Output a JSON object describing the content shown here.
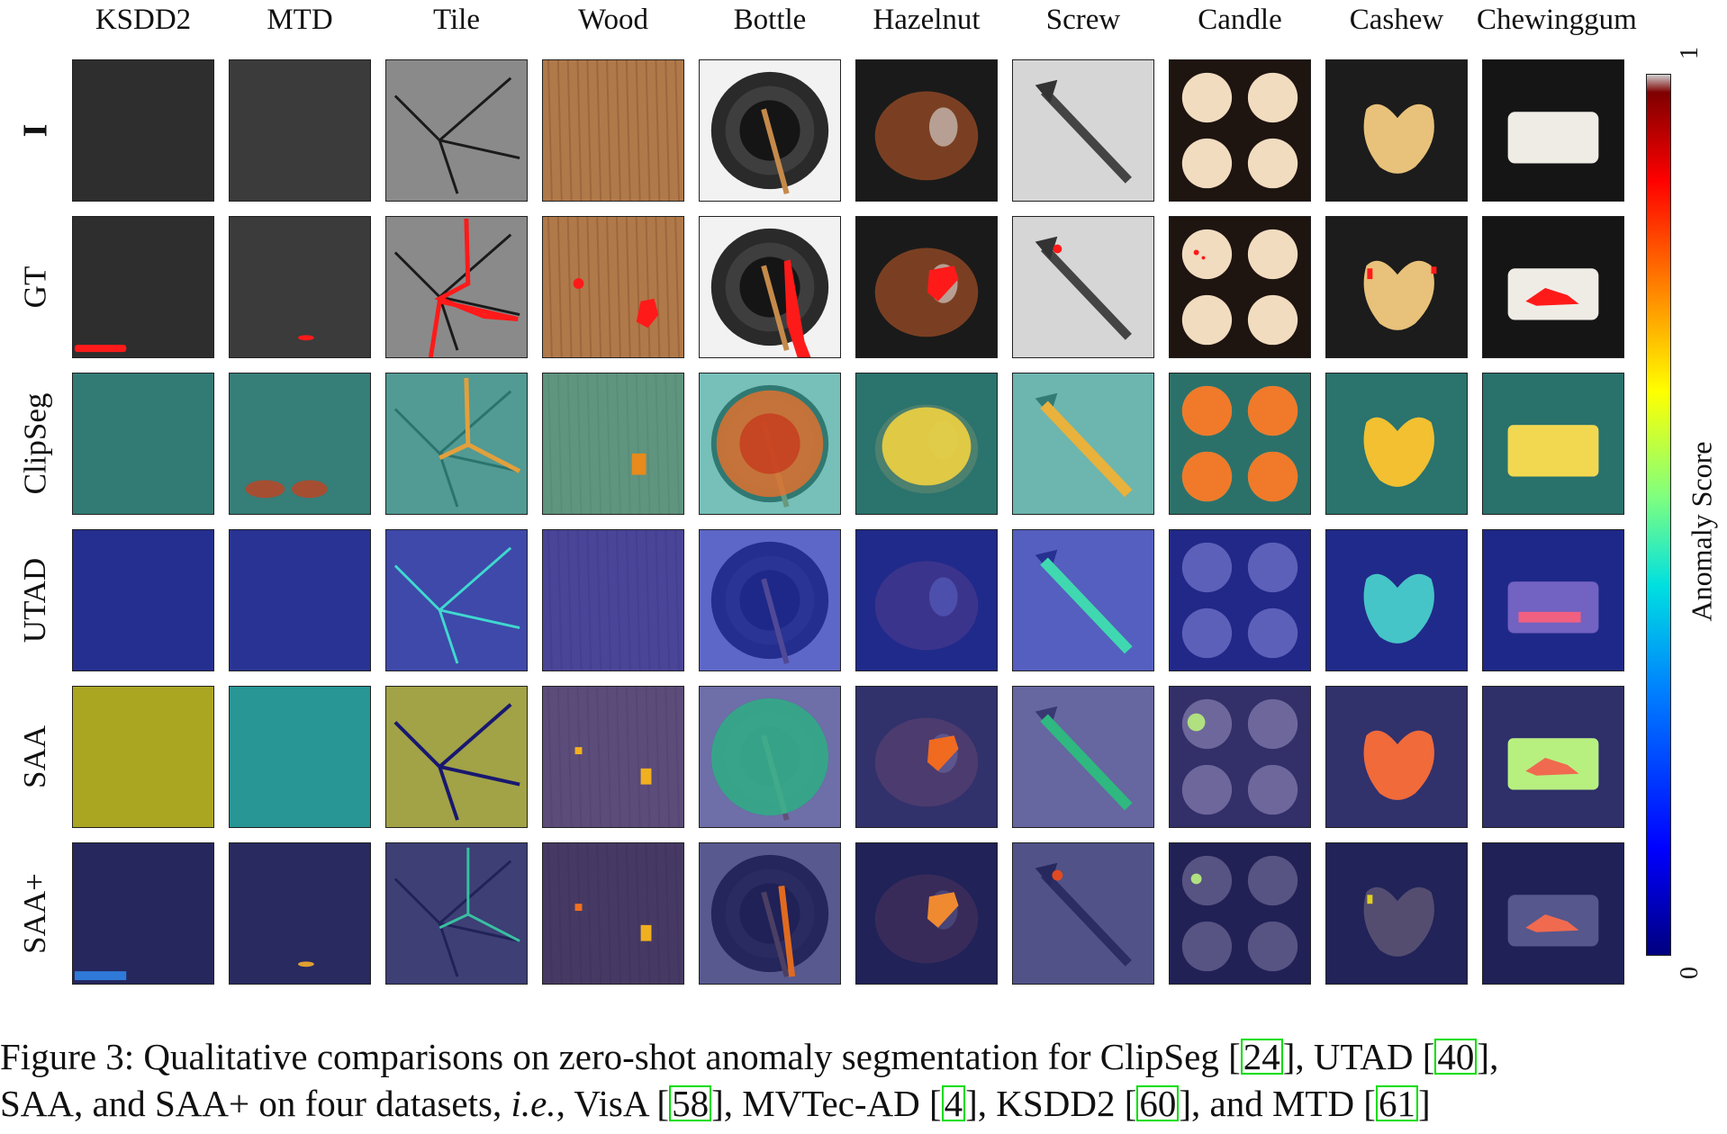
{
  "columns": [
    "KSDD2",
    "MTD",
    "Tile",
    "Wood",
    "Bottle",
    "Hazelnut",
    "Screw",
    "Candle",
    "Cashew",
    "Chewinggum"
  ],
  "rows": [
    "I",
    "GT",
    "ClipSeg",
    "UTAD",
    "SAA",
    "SAA+"
  ],
  "colorbar": {
    "label": "Anomaly Score",
    "max_label": "1",
    "min_label": "0",
    "colors": [
      "#00007f",
      "#0000ff",
      "#00e0e0",
      "#ffff00",
      "#ff8000",
      "#ff0000",
      "#7f0000"
    ]
  },
  "caption": {
    "part1": "Figure 3: Qualitative comparisons on zero-shot anomaly segmentation for ClipSeg [",
    "ref1": "24",
    "part2": "], UTAD [",
    "ref2": "40",
    "part3": "],",
    "part4": "SAA, and SAA+ on four datasets, ",
    "ie": "i.e.",
    "part5": ", VisA [",
    "ref3": "58",
    "part6": "], MVTec-AD [",
    "ref4": "4",
    "part7": "], KSDD2 [",
    "ref5": "60",
    "part8": "], and MTD [",
    "ref6": "61",
    "part9": "]"
  },
  "colors": {
    "gt_mask": "#ff1a1a",
    "clipseg_tint": "#3fa7a0",
    "utad_tint": "#2335b8",
    "saa_tint": "#3f3f8f",
    "saaplus_tint": "#25266f"
  }
}
